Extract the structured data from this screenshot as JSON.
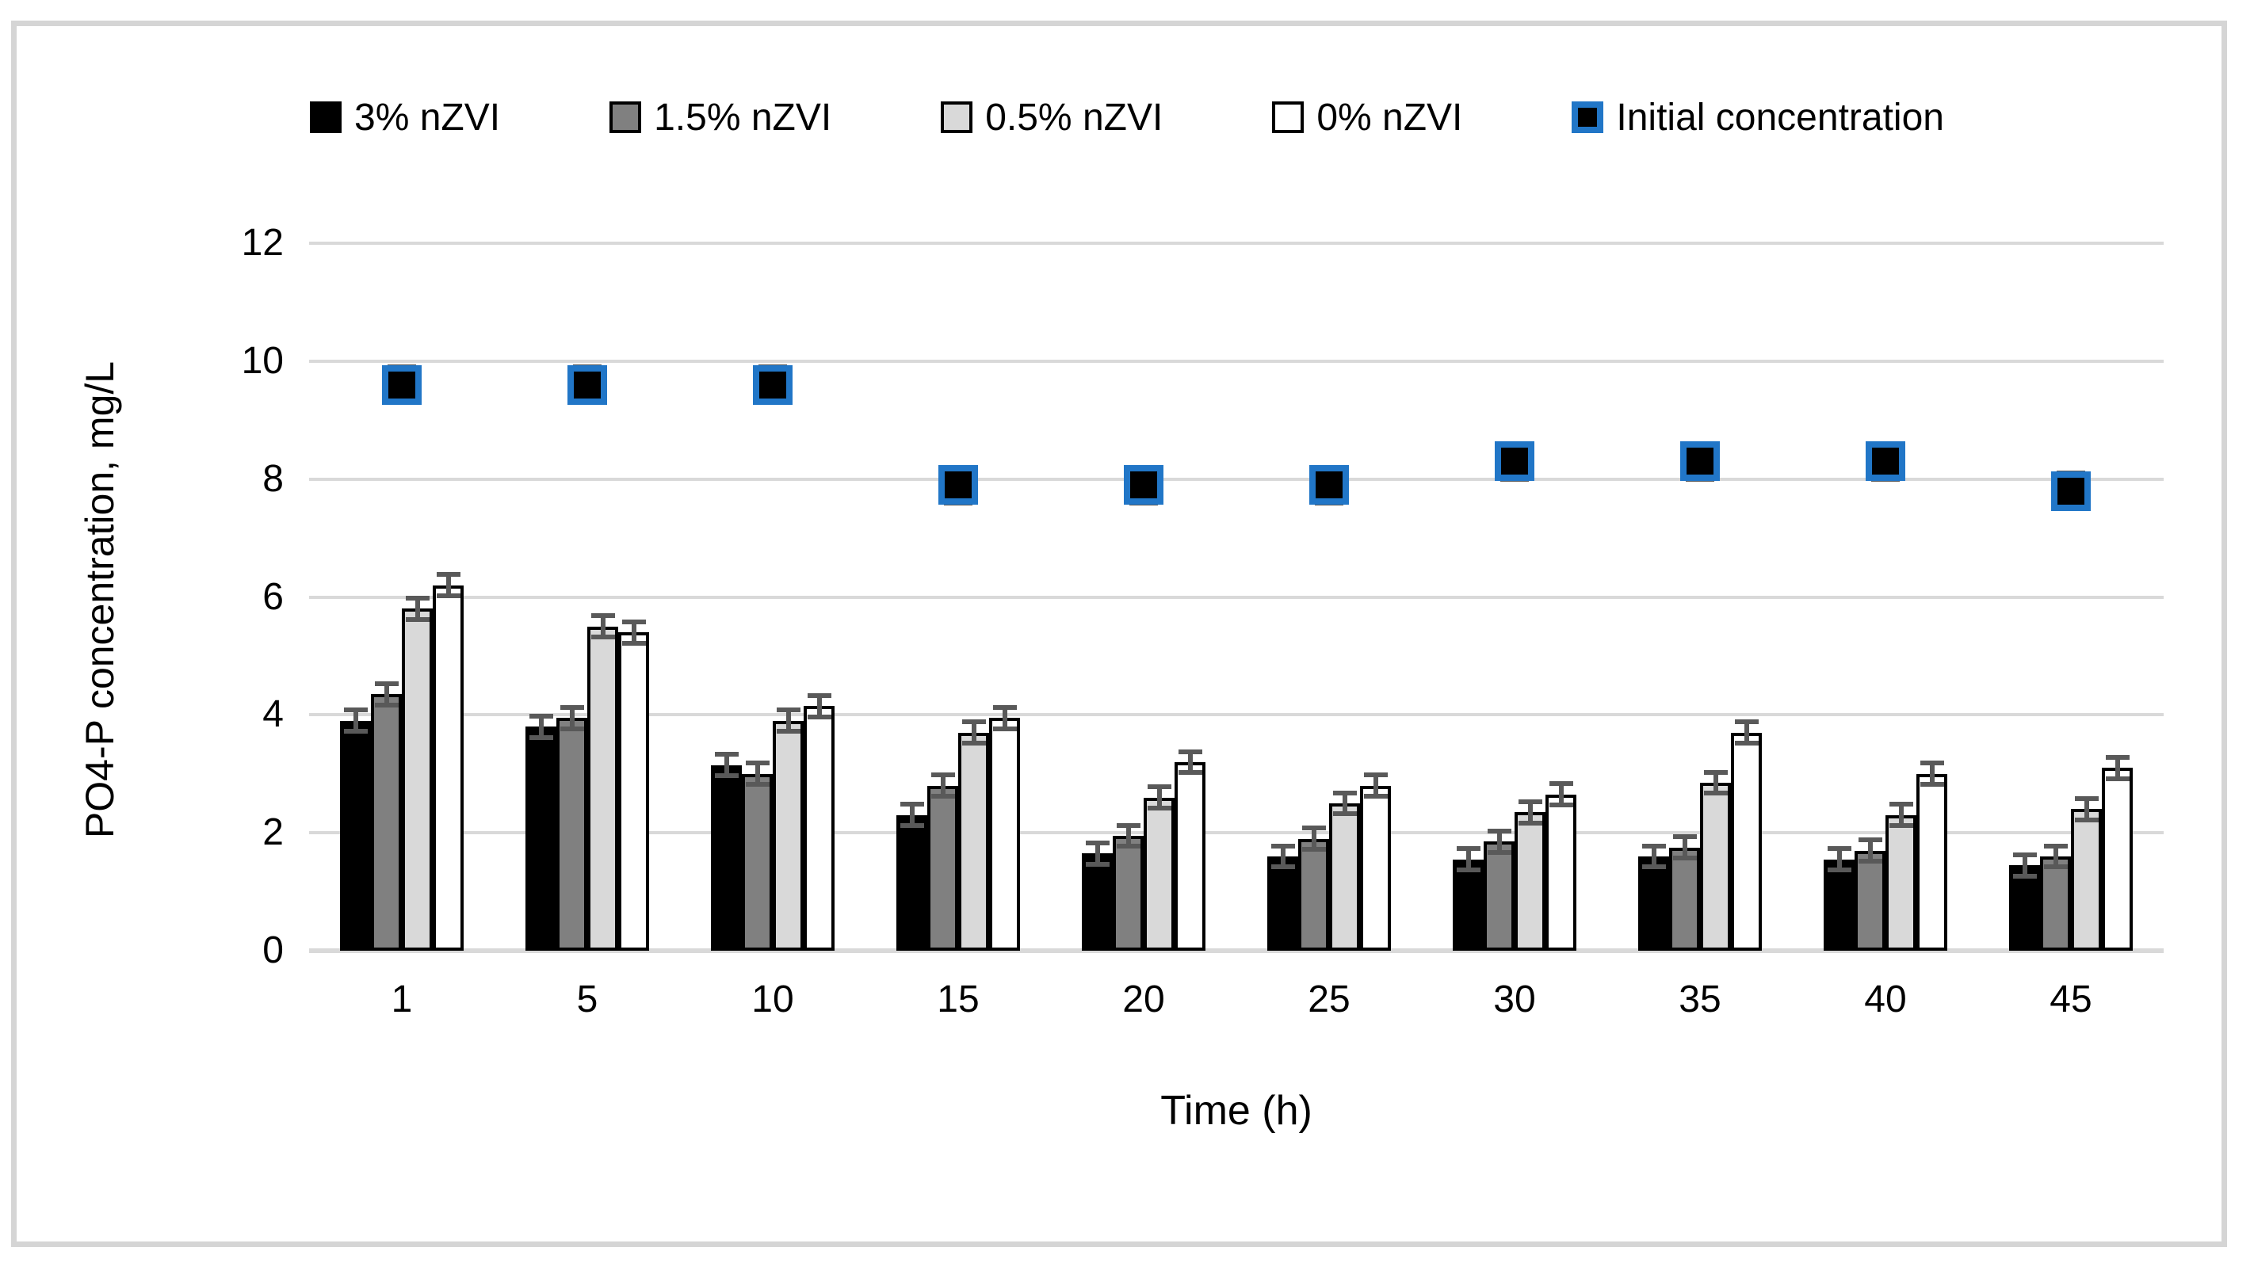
{
  "figure": {
    "background": "#ffffff",
    "border_color": "#d5d5d5"
  },
  "chart_data": {
    "type": "bar",
    "title": "",
    "xlabel": "Time (h)",
    "ylabel": "PO4-P concentration, mg/L",
    "categories": [
      "1",
      "5",
      "10",
      "15",
      "20",
      "25",
      "30",
      "35",
      "40",
      "45"
    ],
    "ylim": [
      0,
      12
    ],
    "yticks": [
      "0",
      "2",
      "4",
      "6",
      "8",
      "10",
      "12"
    ],
    "grid": true,
    "legend_position": "top",
    "gridline_color": "#d9d9d9",
    "error_bar_color": "#595959",
    "series": [
      {
        "name": "3% nZVI",
        "type": "bar",
        "fill": "#000000",
        "border": "#000000",
        "values": [
          3.9,
          3.8,
          3.15,
          2.3,
          1.65,
          1.6,
          1.55,
          1.6,
          1.55,
          1.45
        ],
        "error": 0.18
      },
      {
        "name": "1.5% nZVI",
        "type": "bar",
        "fill": "#808080",
        "border": "#000000",
        "values": [
          4.35,
          3.95,
          3.0,
          2.8,
          1.95,
          1.9,
          1.85,
          1.75,
          1.7,
          1.6
        ],
        "error": 0.18
      },
      {
        "name": "0.5% nZVI",
        "type": "bar",
        "fill": "#d9d9d9",
        "border": "#000000",
        "values": [
          5.8,
          5.5,
          3.9,
          3.7,
          2.6,
          2.5,
          2.35,
          2.85,
          2.3,
          2.4
        ],
        "error": 0.18
      },
      {
        "name": "0% nZVI",
        "type": "bar",
        "fill": "#ffffff",
        "border": "#000000",
        "values": [
          6.2,
          5.4,
          4.15,
          3.95,
          3.2,
          2.8,
          2.65,
          3.7,
          3.0,
          3.1
        ],
        "error": 0.18
      },
      {
        "name": "Initial concentration",
        "type": "scatter-square",
        "fill": "#000000",
        "border": "#2176c7",
        "values": [
          9.6,
          9.6,
          9.6,
          7.9,
          7.9,
          7.9,
          8.3,
          8.3,
          8.3,
          7.8
        ],
        "error": 0.3
      }
    ]
  }
}
